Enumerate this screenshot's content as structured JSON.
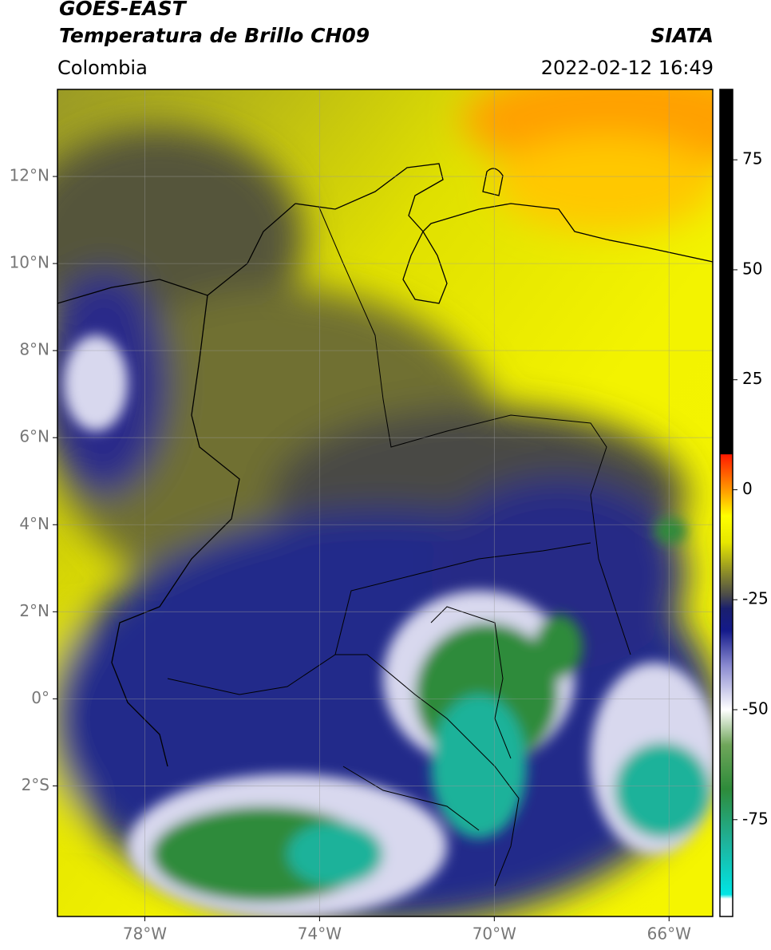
{
  "header": {
    "title": "GOES-EAST",
    "subtitle": "Temperatura de Brillo CH09",
    "source": "SIATA",
    "region": "Colombia",
    "datetime": "2022-02-12 16:49"
  },
  "map": {
    "xlim": [
      -80,
      -65
    ],
    "ylim": [
      -5,
      14
    ],
    "xticks": [
      {
        "value": -78,
        "label": "78°W"
      },
      {
        "value": -74,
        "label": "74°W"
      },
      {
        "value": -70,
        "label": "70°W"
      },
      {
        "value": -66,
        "label": "66°W"
      }
    ],
    "yticks": [
      {
        "value": 12,
        "label": "12°N"
      },
      {
        "value": 10,
        "label": "10°N"
      },
      {
        "value": 8,
        "label": "8°N"
      },
      {
        "value": 6,
        "label": "6°N"
      },
      {
        "value": 4,
        "label": "4°N"
      },
      {
        "value": 2,
        "label": "2°N"
      },
      {
        "value": 0,
        "label": "0°"
      },
      {
        "value": -2,
        "label": "2°S"
      }
    ],
    "grid": true
  },
  "colorbar": {
    "lim": [
      -97,
      91
    ],
    "ticks": [
      75,
      50,
      25,
      0,
      -25,
      -50,
      -75
    ],
    "colormap": [
      [
        -97,
        "#ffffff"
      ],
      [
        -93,
        "#ffffff"
      ],
      [
        -92,
        "#00e5e5"
      ],
      [
        -80,
        "#1fb29a"
      ],
      [
        -68,
        "#2e8b3a"
      ],
      [
        -58,
        "#6fa65a"
      ],
      [
        -50,
        "#ffffff"
      ],
      [
        -40,
        "#8a8ad0"
      ],
      [
        -32,
        "#141a8a"
      ],
      [
        -27,
        "#1a1f6e"
      ],
      [
        -24,
        "#4a4a4a"
      ],
      [
        -19,
        "#8a8a2a"
      ],
      [
        -12,
        "#e6e600"
      ],
      [
        -6,
        "#ffff00"
      ],
      [
        0,
        "#ff9900"
      ],
      [
        8,
        "#ff1a00"
      ],
      [
        8.1,
        "#000000"
      ],
      [
        91,
        "#000000"
      ]
    ]
  }
}
